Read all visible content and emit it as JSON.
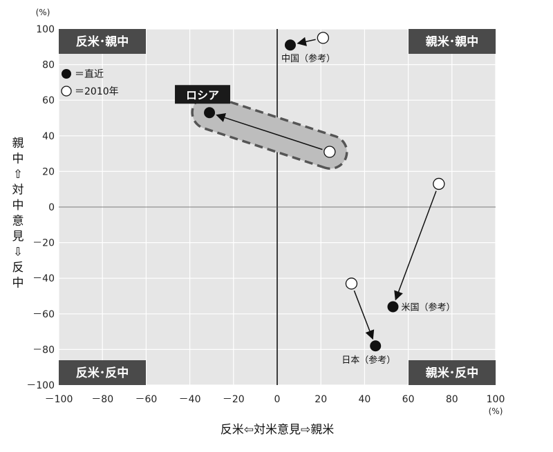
{
  "chart_data": {
    "type": "scatter",
    "x_unit": "(%)",
    "y_unit": "(%)",
    "xlabel": "反米⇦対米意見⇨親米",
    "ylabel": "親中⇧対中意見⇩反中",
    "xlim": [
      -100,
      100
    ],
    "ylim": [
      -100,
      100
    ],
    "x_ticks": [
      -100,
      -80,
      -60,
      -40,
      -20,
      0,
      20,
      40,
      60,
      80,
      100
    ],
    "y_ticks": [
      100,
      80,
      60,
      40,
      20,
      0,
      -20,
      -40,
      -60,
      -80,
      -100
    ],
    "x_tick_labels": [
      "－100",
      "－80",
      "－60",
      "－40",
      "－20",
      "0",
      "20",
      "40",
      "60",
      "80",
      "100"
    ],
    "y_tick_labels": [
      "100",
      "80",
      "60",
      "40",
      "20",
      "0",
      "－20",
      "－40",
      "－60",
      "－80",
      "－100"
    ],
    "grid": true,
    "quadrants": {
      "top_left": "反米･親中",
      "top_right": "親米･親中",
      "bottom_left": "反米･反中",
      "bottom_right": "親米･反中"
    },
    "legend": {
      "recent": "＝直近",
      "y2010": "＝2010年"
    },
    "series": [
      {
        "label": "ロシア",
        "highlight": true,
        "x2010": 24,
        "y2010": 31,
        "xrecent": -31,
        "yrecent": 53
      },
      {
        "label": "中国（参考）",
        "highlight": false,
        "x2010": 21,
        "y2010": 95,
        "xrecent": 6,
        "yrecent": 91
      },
      {
        "label": "米国（参考）",
        "highlight": false,
        "x2010": 74,
        "y2010": 13,
        "xrecent": 53,
        "yrecent": -56
      },
      {
        "label": "日本（参考）",
        "highlight": false,
        "x2010": 34,
        "y2010": -43,
        "xrecent": 45,
        "yrecent": -78
      }
    ]
  }
}
